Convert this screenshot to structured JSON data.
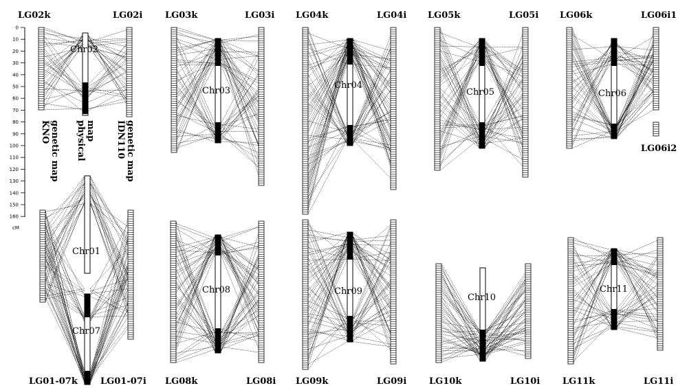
{
  "figure": {
    "linkage_groups": [
      {
        "id": "LG02",
        "left": "LG02k",
        "right": "LG02i",
        "chromosome": "Chr02"
      },
      {
        "id": "LG03",
        "left": "LG03k",
        "right": "LG03i",
        "chromosome": "Chr03"
      },
      {
        "id": "LG04",
        "left": "LG04k",
        "right": "LG04i",
        "chromosome": "Chr04"
      },
      {
        "id": "LG05",
        "left": "LG05k",
        "right": "LG05i",
        "chromosome": "Chr05"
      },
      {
        "id": "LG06",
        "left": "LG06k",
        "right": "LG06i1",
        "right2": "LG06i2",
        "chromosome": "Chr06"
      },
      {
        "id": "LG01-07",
        "left": "LG01-07k",
        "right": "LG01-07i",
        "chromosome": "Chr01",
        "chromosome2": "Chr07"
      },
      {
        "id": "LG08",
        "left": "LG08k",
        "right": "LG08i",
        "chromosome": "Chr08"
      },
      {
        "id": "LG09",
        "left": "LG09k",
        "right": "LG09i",
        "chromosome": "Chr09"
      },
      {
        "id": "LG10",
        "left": "LG10k",
        "right": "LG10i",
        "chromosome": "Chr10"
      },
      {
        "id": "LG11",
        "left": "LG11k",
        "right": "LG11i",
        "chromosome": "Chr11"
      }
    ],
    "map_labels": {
      "kno": [
        "KNO",
        "genetic map"
      ],
      "physical": [
        "physical",
        "map"
      ],
      "idn": [
        "IDN110",
        "genetic map"
      ]
    },
    "scale": {
      "unit": "cM",
      "ticks": [
        "0",
        "10",
        "20",
        "30",
        "40",
        "50",
        "60",
        "70",
        "80",
        "90",
        "100",
        "110",
        "120",
        "130",
        "140",
        "150",
        "160"
      ]
    }
  }
}
